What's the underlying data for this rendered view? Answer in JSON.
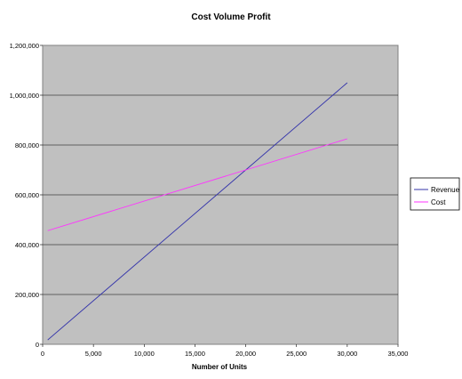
{
  "chart_data": {
    "type": "line",
    "title": "Cost Volume Profit",
    "xlabel": "Number of Units",
    "ylabel": "",
    "xlim": [
      0,
      35000
    ],
    "ylim": [
      0,
      1200000
    ],
    "x_ticks": [
      0,
      5000,
      10000,
      15000,
      20000,
      25000,
      30000,
      35000
    ],
    "y_ticks": [
      0,
      200000,
      400000,
      600000,
      800000,
      1000000,
      1200000
    ],
    "x_tick_labels": [
      "0",
      "5,000",
      "10,000",
      "15,000",
      "20,000",
      "25,000",
      "30,000",
      "35,000"
    ],
    "y_tick_labels": [
      "0",
      "200,000",
      "400,000",
      "600,000",
      "800,000",
      "1,000,000",
      "1,200,000"
    ],
    "grid": "horizontal",
    "plot_background": "#c0c0c0",
    "legend_position": "right",
    "series": [
      {
        "name": "Revenue",
        "color": "#3333aa",
        "x": [
          500,
          30000
        ],
        "y": [
          17500,
          1050000
        ]
      },
      {
        "name": "Cost",
        "color": "#ff33ff",
        "x": [
          500,
          30000
        ],
        "y": [
          456250,
          825000
        ]
      }
    ]
  }
}
